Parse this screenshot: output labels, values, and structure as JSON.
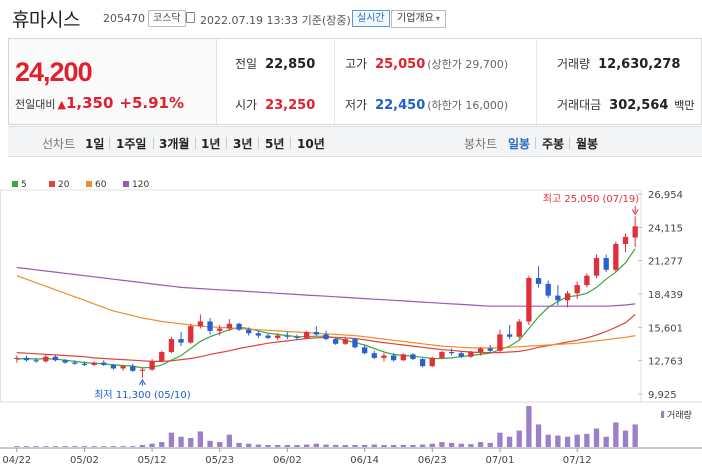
{
  "stock": {
    "name": "휴마시스",
    "code": "205470",
    "market": "코스닥",
    "timestamp": "2022.07.19 13:33 기준(장중)",
    "realtime": "실시간",
    "company_info": "기업개요"
  },
  "price": {
    "current": "24,200",
    "change_label": "전일대비",
    "change_arrow": "▲",
    "change": "1,350",
    "change_pct": "+5.91%"
  },
  "quote": {
    "prev_close_label": "전일",
    "prev_close": "22,850",
    "high_label": "고가",
    "high": "25,050",
    "upper_limit": "(상한가 29,700)",
    "volume_label": "거래량",
    "volume": "12,630,278",
    "open_label": "시가",
    "open": "23,250",
    "low_label": "저가",
    "low": "22,450",
    "lower_limit": "(하한가 16,000)",
    "amount_label": "거래대금",
    "amount": "302,564",
    "amount_unit": "백만"
  },
  "period_bar": {
    "line_label": "선차트",
    "line_periods": [
      "1일",
      "1주일",
      "3개월",
      "1년",
      "3년",
      "5년",
      "10년"
    ],
    "candle_label": "봉차트",
    "candle_periods": [
      "일봉",
      "주봉",
      "월봉"
    ],
    "active_candle": "일봉"
  },
  "chart_data": {
    "type": "candlestick",
    "legend": [
      {
        "name": "5",
        "color": "#3aa83a"
      },
      {
        "name": "20",
        "color": "#e0443c"
      },
      {
        "name": "60",
        "color": "#f08c2c"
      },
      {
        "name": "120",
        "color": "#9b59b6"
      }
    ],
    "y_ticks": [
      "26,954",
      "24,115",
      "21,277",
      "18,439",
      "15,601",
      "12,763",
      "9,925"
    ],
    "ylim": [
      9925,
      26954
    ],
    "x_ticks": [
      "04/22",
      "05/02",
      "05/12",
      "05/23",
      "06/02",
      "06/14",
      "06/23",
      "07/01",
      "07/12"
    ],
    "max_annotation": "최고 25,050 (07/19)",
    "min_annotation": "최저 11,300 (05/10)",
    "volume_label": "거래량",
    "colors": {
      "up": "#e0303c",
      "down": "#2a5fd0",
      "volume": "#9b7fc8"
    },
    "candles": [
      [
        12900,
        13200,
        12600,
        13000
      ],
      [
        13000,
        13200,
        12700,
        12800
      ],
      [
        12800,
        13000,
        12600,
        12700
      ],
      [
        12700,
        13300,
        12600,
        13100
      ],
      [
        13100,
        13200,
        12700,
        12800
      ],
      [
        12800,
        12900,
        12500,
        12600
      ],
      [
        12600,
        12800,
        12400,
        12500
      ],
      [
        12500,
        12700,
        12300,
        12400
      ],
      [
        12400,
        12700,
        12300,
        12600
      ],
      [
        12600,
        12800,
        12300,
        12400
      ],
      [
        12400,
        12500,
        12000,
        12100
      ],
      [
        12100,
        12400,
        11900,
        12300
      ],
      [
        12300,
        12500,
        11800,
        11900
      ],
      [
        11900,
        12200,
        11300,
        12000
      ],
      [
        12000,
        12900,
        11900,
        12700
      ],
      [
        12700,
        13600,
        12600,
        13500
      ],
      [
        13500,
        14800,
        13400,
        14600
      ],
      [
        14600,
        15200,
        14000,
        14300
      ],
      [
        14300,
        15900,
        14200,
        15700
      ],
      [
        15700,
        16700,
        15500,
        16100
      ],
      [
        16100,
        16400,
        15000,
        15300
      ],
      [
        15300,
        15800,
        14900,
        15500
      ],
      [
        15500,
        16300,
        15300,
        15900
      ],
      [
        15900,
        16000,
        15300,
        15400
      ],
      [
        15400,
        15600,
        14900,
        15100
      ],
      [
        15100,
        15300,
        14700,
        14900
      ],
      [
        14900,
        15100,
        14600,
        14700
      ],
      [
        14700,
        15100,
        14500,
        14900
      ],
      [
        14900,
        15200,
        14600,
        14800
      ],
      [
        14800,
        15000,
        14500,
        14700
      ],
      [
        14700,
        15300,
        14600,
        15200
      ],
      [
        15200,
        15700,
        14900,
        15000
      ],
      [
        15000,
        15300,
        14500,
        14600
      ],
      [
        14600,
        14700,
        14100,
        14200
      ],
      [
        14200,
        14800,
        14100,
        14600
      ],
      [
        14600,
        14700,
        13800,
        13900
      ],
      [
        13900,
        14100,
        13300,
        13400
      ],
      [
        13400,
        13600,
        12900,
        13000
      ],
      [
        13000,
        13400,
        12700,
        13200
      ],
      [
        13200,
        13400,
        12700,
        12800
      ],
      [
        12800,
        13400,
        12700,
        13300
      ],
      [
        13300,
        13400,
        12800,
        12900
      ],
      [
        12900,
        13000,
        12200,
        12300
      ],
      [
        12300,
        13100,
        12200,
        13000
      ],
      [
        13000,
        13600,
        12900,
        13500
      ],
      [
        13500,
        13800,
        13200,
        13400
      ],
      [
        13400,
        13500,
        13000,
        13100
      ],
      [
        13100,
        13600,
        13000,
        13500
      ],
      [
        13500,
        13900,
        13200,
        13800
      ],
      [
        13800,
        14100,
        13400,
        13600
      ],
      [
        13600,
        15400,
        13500,
        15000
      ],
      [
        15000,
        15800,
        14600,
        14800
      ],
      [
        14800,
        16300,
        14600,
        16100
      ],
      [
        16100,
        20000,
        15800,
        19800
      ],
      [
        19800,
        20800,
        19000,
        19300
      ],
      [
        19300,
        19600,
        18100,
        18300
      ],
      [
        18300,
        19200,
        17500,
        17900
      ],
      [
        17900,
        18700,
        17300,
        18500
      ],
      [
        18500,
        19500,
        18000,
        19200
      ],
      [
        19200,
        20200,
        19000,
        20000
      ],
      [
        20000,
        21800,
        19800,
        21500
      ],
      [
        21500,
        21800,
        20300,
        20500
      ],
      [
        20500,
        22900,
        20300,
        22700
      ],
      [
        22700,
        23600,
        22000,
        23300
      ],
      [
        23250,
        25050,
        22450,
        24200
      ]
    ],
    "volumes": [
      0.02,
      0.02,
      0.02,
      0.02,
      0.02,
      0.02,
      0.02,
      0.02,
      0.02,
      0.02,
      0.02,
      0.02,
      0.02,
      0.05,
      0.08,
      0.12,
      0.35,
      0.25,
      0.22,
      0.38,
      0.15,
      0.12,
      0.3,
      0.1,
      0.08,
      0.06,
      0.05,
      0.05,
      0.05,
      0.05,
      0.06,
      0.08,
      0.06,
      0.05,
      0.05,
      0.05,
      0.05,
      0.06,
      0.05,
      0.05,
      0.05,
      0.05,
      0.06,
      0.08,
      0.12,
      0.1,
      0.08,
      0.07,
      0.12,
      0.1,
      0.35,
      0.25,
      0.4,
      1.0,
      0.55,
      0.3,
      0.28,
      0.25,
      0.3,
      0.32,
      0.45,
      0.25,
      0.6,
      0.4,
      0.55
    ],
    "ma_series": [
      {
        "name": "5",
        "color": "#3aa83a",
        "values": [
          12900,
          12950,
          12900,
          12950,
          12900,
          12800,
          12700,
          12600,
          12550,
          12500,
          12400,
          12350,
          12300,
          12150,
          12200,
          12400,
          12800,
          13200,
          13800,
          14400,
          14800,
          15100,
          15400,
          15600,
          15500,
          15300,
          15100,
          15000,
          14900,
          14800,
          14800,
          14850,
          14850,
          14700,
          14500,
          14300,
          14100,
          13800,
          13500,
          13300,
          13200,
          13150,
          13050,
          12950,
          12950,
          13000,
          13100,
          13200,
          13300,
          13400,
          13700,
          14000,
          14500,
          15500,
          16500,
          17300,
          17800,
          18200,
          18300,
          18500,
          19000,
          19700,
          20300,
          21100,
          22300
        ]
      },
      {
        "name": "20",
        "color": "#e0443c",
        "values": [
          13450,
          13400,
          13350,
          13300,
          13250,
          13200,
          13150,
          13100,
          13000,
          12950,
          12900,
          12850,
          12800,
          12750,
          12700,
          12700,
          12750,
          12850,
          12950,
          13100,
          13300,
          13450,
          13600,
          13800,
          13950,
          14100,
          14250,
          14350,
          14450,
          14550,
          14650,
          14700,
          14750,
          14750,
          14700,
          14650,
          14550,
          14400,
          14300,
          14200,
          14100,
          14000,
          13900,
          13800,
          13700,
          13650,
          13550,
          13500,
          13450,
          13450,
          13450,
          13500,
          13550,
          13700,
          13900,
          14050,
          14200,
          14350,
          14500,
          14700,
          14950,
          15250,
          15600,
          16000,
          16700
        ]
      },
      {
        "name": "60",
        "color": "#f08c2c",
        "values": [
          20000,
          19700,
          19400,
          19100,
          18800,
          18500,
          18200,
          17900,
          17600,
          17300,
          17000,
          16800,
          16600,
          16400,
          16250,
          16100,
          16000,
          15900,
          15800,
          15700,
          15650,
          15600,
          15550,
          15500,
          15450,
          15400,
          15350,
          15300,
          15250,
          15200,
          15150,
          15100,
          15050,
          15000,
          14950,
          14900,
          14800,
          14700,
          14600,
          14500,
          14400,
          14300,
          14200,
          14100,
          14000,
          13950,
          13900,
          13850,
          13850,
          13850,
          13850,
          13900,
          13950,
          14000,
          14050,
          14100,
          14150,
          14200,
          14250,
          14350,
          14450,
          14550,
          14650,
          14750,
          14900
        ]
      },
      {
        "name": "120",
        "color": "#9b59b6",
        "values": [
          20700,
          20600,
          20500,
          20400,
          20300,
          20200,
          20100,
          20000,
          19900,
          19800,
          19700,
          19600,
          19500,
          19400,
          19300,
          19200,
          19100,
          19000,
          18950,
          18900,
          18850,
          18800,
          18750,
          18700,
          18650,
          18600,
          18550,
          18500,
          18450,
          18400,
          18350,
          18300,
          18250,
          18200,
          18150,
          18100,
          18050,
          18000,
          17950,
          17900,
          17850,
          17800,
          17750,
          17700,
          17650,
          17600,
          17550,
          17500,
          17450,
          17400,
          17400,
          17400,
          17400,
          17400,
          17400,
          17400,
          17400,
          17400,
          17400,
          17400,
          17400,
          17400,
          17450,
          17500,
          17600
        ]
      }
    ]
  }
}
